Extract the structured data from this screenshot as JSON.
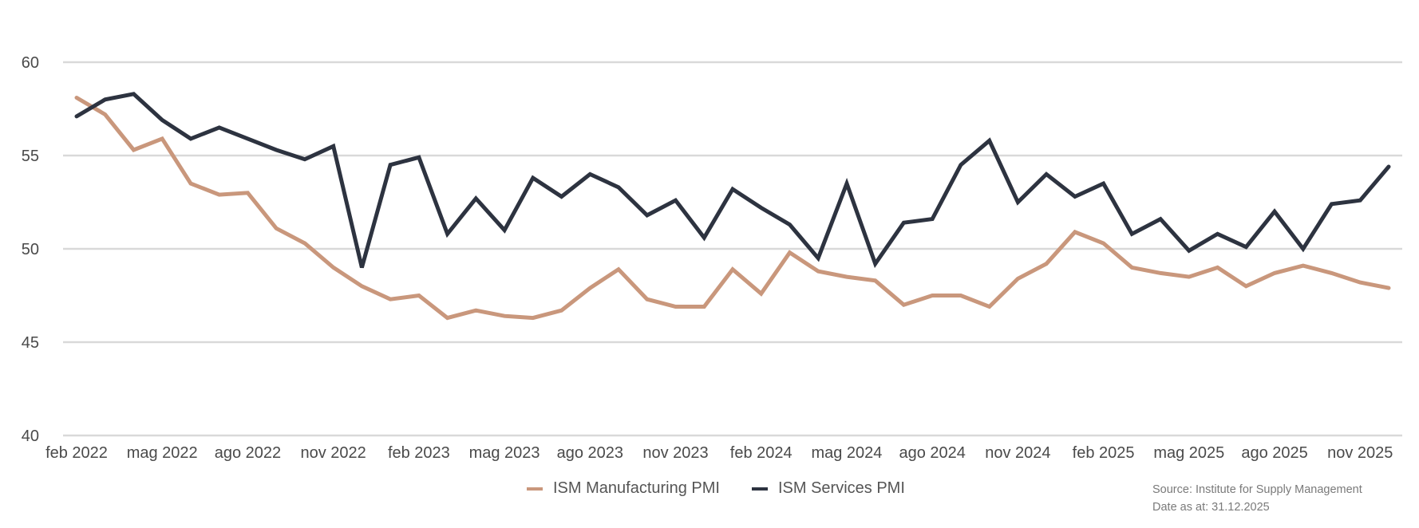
{
  "chart_data": {
    "type": "line",
    "title": "",
    "xlabel": "",
    "ylabel": "",
    "ylim": [
      40,
      60
    ],
    "yticks": [
      40,
      45,
      50,
      55,
      60
    ],
    "grid": "horizontal",
    "legend_position": "bottom-center",
    "x": [
      "feb 2022",
      "mar 2022",
      "apr 2022",
      "mag 2022",
      "giu 2022",
      "lug 2022",
      "ago 2022",
      "set 2022",
      "ott 2022",
      "nov 2022",
      "dic 2022",
      "gen 2023",
      "feb 2023",
      "mar 2023",
      "apr 2023",
      "mag 2023",
      "giu 2023",
      "lug 2023",
      "ago 2023",
      "set 2023",
      "ott 2023",
      "nov 2023",
      "dic 2023",
      "gen 2024",
      "feb 2024",
      "mar 2024",
      "apr 2024",
      "mag 2024",
      "giu 2024",
      "lug 2024",
      "ago 2024",
      "set 2024",
      "ott 2024",
      "nov 2024",
      "dic 2024",
      "gen 2025",
      "feb 2025",
      "mar 2025",
      "apr 2025",
      "mag 2025",
      "giu 2025",
      "lug 2025",
      "ago 2025",
      "set 2025",
      "ott 2025",
      "nov 2025",
      "dic 2025"
    ],
    "xtick_labels": [
      {
        "index": 0,
        "label": "feb 2022"
      },
      {
        "index": 3,
        "label": "mag 2022"
      },
      {
        "index": 6,
        "label": "ago 2022"
      },
      {
        "index": 9,
        "label": "nov 2022"
      },
      {
        "index": 12,
        "label": "feb 2023"
      },
      {
        "index": 15,
        "label": "mag 2023"
      },
      {
        "index": 18,
        "label": "ago 2023"
      },
      {
        "index": 21,
        "label": "nov 2023"
      },
      {
        "index": 24,
        "label": "feb 2024"
      },
      {
        "index": 27,
        "label": "mag 2024"
      },
      {
        "index": 30,
        "label": "ago 2024"
      },
      {
        "index": 33,
        "label": "nov 2024"
      },
      {
        "index": 36,
        "label": "feb 2025"
      },
      {
        "index": 39,
        "label": "mag 2025"
      },
      {
        "index": 42,
        "label": "ago 2025"
      },
      {
        "index": 45,
        "label": "nov 2025"
      }
    ],
    "series": [
      {
        "name": "ISM Manufacturing PMI",
        "color": "#c9977c",
        "values": [
          58.1,
          57.2,
          55.3,
          55.9,
          53.5,
          52.9,
          53.0,
          51.1,
          50.3,
          49.0,
          48.0,
          47.3,
          47.5,
          46.3,
          46.7,
          46.4,
          46.3,
          46.7,
          47.9,
          48.9,
          47.3,
          46.9,
          46.9,
          48.9,
          47.6,
          49.8,
          48.8,
          48.5,
          48.3,
          47.0,
          47.5,
          47.5,
          46.9,
          48.4,
          49.2,
          50.9,
          50.3,
          49.0,
          48.7,
          48.5,
          49.0,
          48.0,
          48.7,
          49.1,
          48.7,
          48.2,
          47.9
        ]
      },
      {
        "name": "ISM Services PMI",
        "color": "#2d3340",
        "values": [
          57.1,
          58.0,
          58.3,
          56.9,
          55.9,
          56.5,
          55.9,
          55.3,
          54.8,
          55.5,
          49.0,
          54.5,
          54.9,
          50.8,
          52.7,
          51.0,
          53.8,
          52.8,
          54.0,
          53.3,
          51.8,
          52.6,
          50.6,
          53.2,
          52.2,
          51.3,
          49.5,
          53.5,
          49.2,
          51.4,
          51.6,
          54.5,
          55.8,
          52.5,
          54.0,
          52.8,
          53.5,
          50.8,
          51.6,
          49.9,
          50.8,
          50.1,
          52.0,
          50.0,
          52.4,
          52.6,
          54.4
        ]
      }
    ],
    "gridline_color": "#d9d9d9"
  },
  "legend": {
    "items": [
      {
        "label": "ISM Manufacturing PMI",
        "color": "#c9977c"
      },
      {
        "label": "ISM Services PMI",
        "color": "#2d3340"
      }
    ]
  },
  "source": {
    "line1": "Source: Institute for Supply Management",
    "line2": "Date as at: 31.12.2025"
  }
}
